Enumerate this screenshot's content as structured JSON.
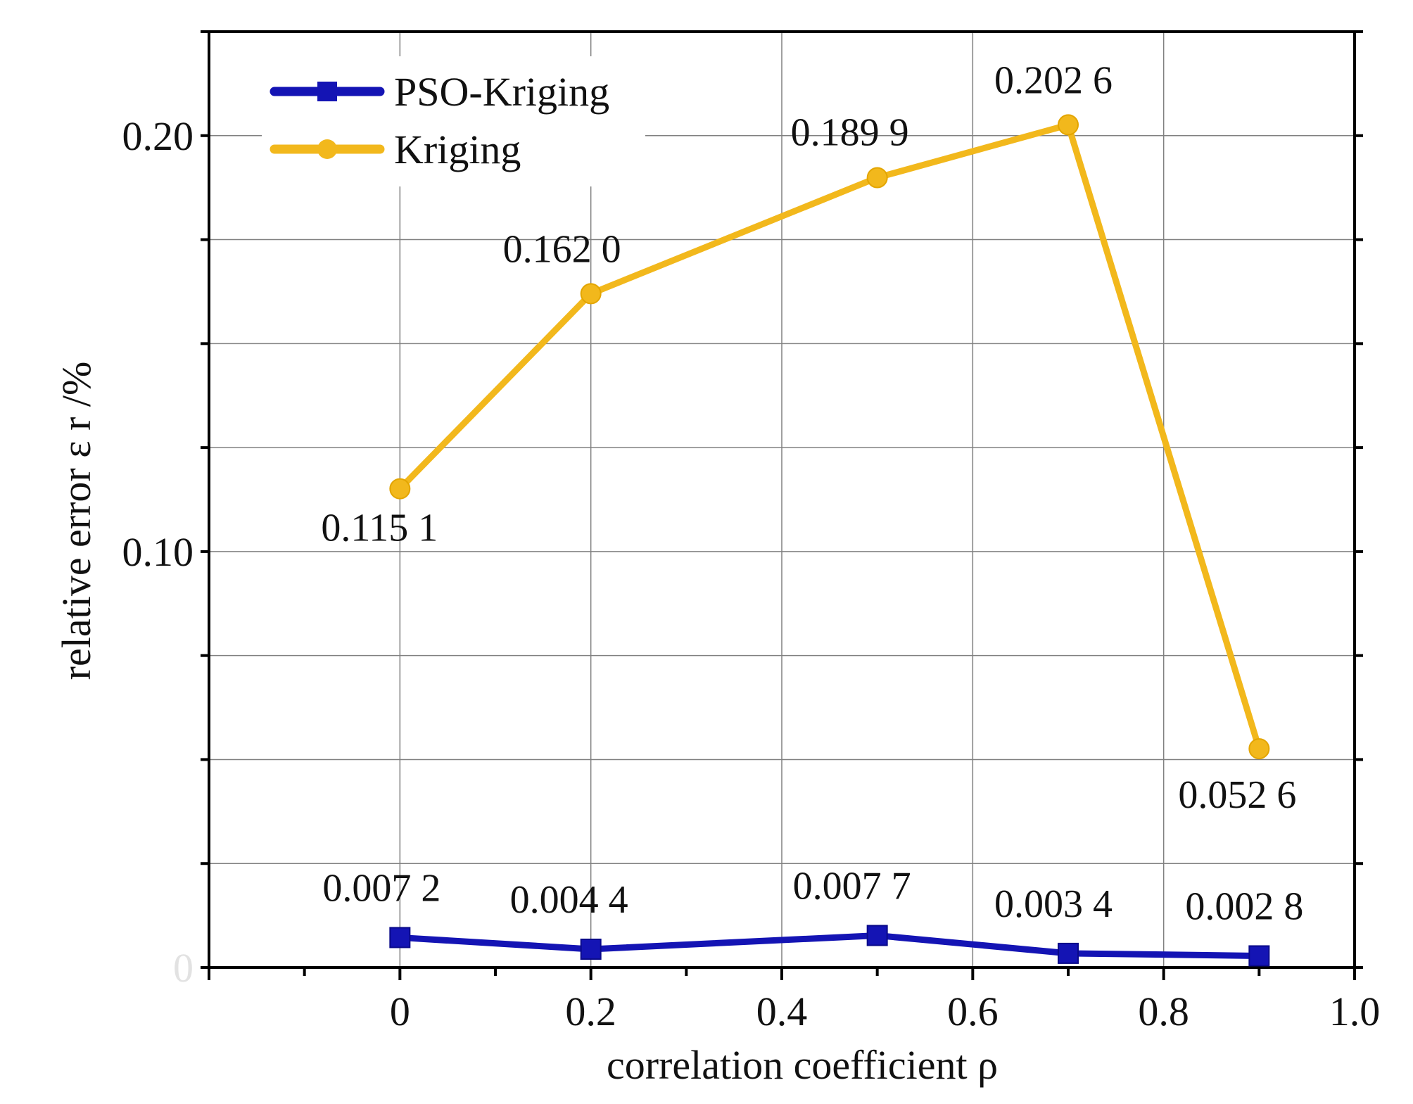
{
  "chart_data": {
    "type": "line",
    "xlabel": "correlation coefficient ρ",
    "ylabel": "relative error ε r /%",
    "xlim": [
      -0.2,
      1.0
    ],
    "ylim": [
      0,
      0.225
    ],
    "x_ticks": [
      "0",
      "0.2",
      "0.4",
      "0.6",
      "0.8",
      "1.0"
    ],
    "y_ticks": [
      "0",
      "0.10",
      "0.20"
    ],
    "grid": true,
    "legend_position": "top-left",
    "series": [
      {
        "name": "PSO-Kriging",
        "color": "#1414b4",
        "marker": "square",
        "x": [
          0,
          0.2,
          0.5,
          0.7,
          0.9
        ],
        "values": [
          0.0072,
          0.0044,
          0.0077,
          0.0034,
          0.0028
        ],
        "labels": [
          "0.007 2",
          "0.004 4",
          "0.007 7",
          "0.003 4",
          "0.002 8"
        ]
      },
      {
        "name": "Kriging",
        "color": "#f2b81c",
        "marker": "circle",
        "x": [
          0,
          0.2,
          0.5,
          0.7,
          0.9
        ],
        "values": [
          0.1151,
          0.162,
          0.1899,
          0.2026,
          0.0526
        ],
        "labels": [
          "0.115 1",
          "0.162 0",
          "0.189 9",
          "0.202 6",
          "0.052 6"
        ]
      }
    ]
  }
}
